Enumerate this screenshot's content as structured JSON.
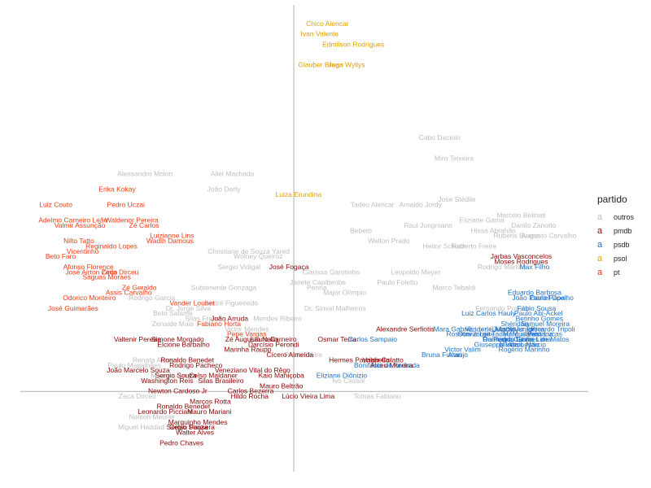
{
  "chart_data": {
    "type": "scatter",
    "title": "",
    "xlabel": "",
    "ylabel": "",
    "grid": false,
    "legend_title": "partido",
    "legend_placement": "right",
    "legend": [
      {
        "key": "outros",
        "label": "outros",
        "color": "#bdbdbd"
      },
      {
        "key": "pmdb",
        "label": "pmdb",
        "color": "#8b0000"
      },
      {
        "key": "psdb",
        "label": "psdb",
        "color": "#1f6fc5"
      },
      {
        "key": "psol",
        "label": "psol",
        "color": "#e0a000"
      },
      {
        "key": "pt",
        "label": "pt",
        "color": "#ee3a12"
      }
    ],
    "points": [
      {
        "label": "Chico Alencar",
        "party": "psol",
        "x": 0.35,
        "y": 0.71
      },
      {
        "label": "Ivan Valente",
        "party": "psol",
        "x": 0.27,
        "y": 0.69
      },
      {
        "label": "Edmilson Rodrigues",
        "party": "psol",
        "x": 0.62,
        "y": 0.67
      },
      {
        "label": "Glauber Braga",
        "party": "psol",
        "x": 0.28,
        "y": 0.63
      },
      {
        "label": "Jean Wyllys",
        "party": "psol",
        "x": 0.55,
        "y": 0.63
      },
      {
        "label": "Luiza Erundina",
        "party": "psol",
        "x": 0.05,
        "y": 0.38
      },
      {
        "label": "Cabo Daciolo",
        "party": "outros",
        "x": 1.52,
        "y": 0.49
      },
      {
        "label": "Miro Teixeira",
        "party": "outros",
        "x": 1.67,
        "y": 0.45
      },
      {
        "label": "Aliel Machado",
        "party": "outros",
        "x": -0.64,
        "y": 0.42
      },
      {
        "label": "João Derly",
        "party": "outros",
        "x": -0.73,
        "y": 0.39
      },
      {
        "label": "Alessandro Molon",
        "party": "outros",
        "x": -1.55,
        "y": 0.42
      },
      {
        "label": "Tadeu Alencar",
        "party": "outros",
        "x": 0.82,
        "y": 0.36
      },
      {
        "label": "Arnaldo Jordy",
        "party": "outros",
        "x": 1.32,
        "y": 0.36
      },
      {
        "label": "Jose Stédile",
        "party": "outros",
        "x": 1.7,
        "y": 0.37
      },
      {
        "label": "Raul Jungmann",
        "party": "outros",
        "x": 1.4,
        "y": 0.32
      },
      {
        "label": "Eliziane Gama",
        "party": "outros",
        "x": 1.96,
        "y": 0.33
      },
      {
        "label": "Hissa Abrahão",
        "party": "outros",
        "x": 2.08,
        "y": 0.31
      },
      {
        "label": "Marcelo Belinati",
        "party": "outros",
        "x": 2.37,
        "y": 0.34
      },
      {
        "label": "Danilo Zanotto",
        "party": "outros",
        "x": 2.5,
        "y": 0.32
      },
      {
        "label": "Rubens Bueno",
        "party": "outros",
        "x": 2.32,
        "y": 0.3
      },
      {
        "label": "Augusto Carvalho",
        "party": "outros",
        "x": 2.66,
        "y": 0.3
      },
      {
        "label": "Bebeto",
        "party": "outros",
        "x": 0.7,
        "y": 0.31
      },
      {
        "label": "Welton Prado",
        "party": "outros",
        "x": 0.99,
        "y": 0.29
      },
      {
        "label": "Heitor Schuch",
        "party": "outros",
        "x": 1.57,
        "y": 0.28
      },
      {
        "label": "Roberto Freire",
        "party": "outros",
        "x": 1.88,
        "y": 0.28
      },
      {
        "label": "Christiane de Souza Yared",
        "party": "outros",
        "x": -0.47,
        "y": 0.27
      },
      {
        "label": "Wolney Queiroz",
        "party": "outros",
        "x": -0.37,
        "y": 0.26
      },
      {
        "label": "Sergio Vidigal",
        "party": "outros",
        "x": -0.57,
        "y": 0.24
      },
      {
        "label": "Clarissa Garotinho",
        "party": "outros",
        "x": 0.39,
        "y": 0.23
      },
      {
        "label": "Janete Capiberibe",
        "party": "outros",
        "x": 0.25,
        "y": 0.21
      },
      {
        "label": "Paulo Foletto",
        "party": "outros",
        "x": 1.08,
        "y": 0.21
      },
      {
        "label": "Leopoldo Meyer",
        "party": "outros",
        "x": 1.27,
        "y": 0.23
      },
      {
        "label": "Rodrigo Martins",
        "party": "outros",
        "x": 2.17,
        "y": 0.24
      },
      {
        "label": "Subtenente Gonzaga",
        "party": "outros",
        "x": -0.73,
        "y": 0.2
      },
      {
        "label": "Penna",
        "party": "outros",
        "x": 0.24,
        "y": 0.2
      },
      {
        "label": "Major Olímpio",
        "party": "outros",
        "x": 0.53,
        "y": 0.19
      },
      {
        "label": "Marco Tebaldi",
        "party": "outros",
        "x": 1.67,
        "y": 0.2
      },
      {
        "label": "Rodrigo Garcia",
        "party": "outros",
        "x": -1.48,
        "y": 0.18
      },
      {
        "label": "André Figueiredo",
        "party": "outros",
        "x": -0.65,
        "y": 0.17
      },
      {
        "label": "Dr. Jorge Silva",
        "party": "outros",
        "x": -1.1,
        "y": 0.16
      },
      {
        "label": "Dr. Sinval Malheiros",
        "party": "outros",
        "x": 0.43,
        "y": 0.16
      },
      {
        "label": "Fernando Ponson",
        "party": "outros",
        "x": 2.18,
        "y": 0.16
      },
      {
        "label": "Beto Salame",
        "party": "outros",
        "x": -1.26,
        "y": 0.15
      },
      {
        "label": "Silas Freire",
        "party": "outros",
        "x": -0.95,
        "y": 0.14
      },
      {
        "label": "Mendes Ribeiro",
        "party": "outros",
        "x": -0.17,
        "y": 0.14
      },
      {
        "label": "Zenaide Maia",
        "party": "outros",
        "x": -1.26,
        "y": 0.13
      },
      {
        "label": "Luiz Cauduro",
        "party": "outros",
        "x": 2.1,
        "y": 0.12
      },
      {
        "label": "Victor Mendes",
        "party": "outros",
        "x": -0.49,
        "y": 0.12
      },
      {
        "label": "Paulo Freire",
        "party": "outros",
        "x": 0.1,
        "y": 0.07
      },
      {
        "label": "Renata Abreu",
        "party": "outros",
        "x": -1.46,
        "y": 0.06
      },
      {
        "label": "Paulo Magalhães",
        "party": "outros",
        "x": -1.66,
        "y": 0.05
      },
      {
        "label": "Mauro Lopes",
        "party": "outros",
        "x": -1.28,
        "y": 0.03
      },
      {
        "label": "Nelson Meurer",
        "party": "outros",
        "x": -1.48,
        "y": -0.05
      },
      {
        "label": "Miguel Haddad",
        "party": "outros",
        "x": -1.59,
        "y": -0.07
      },
      {
        "label": "Zeca Dirceu",
        "party": "outros",
        "x": -1.63,
        "y": -0.01
      },
      {
        "label": "Tomas Fabiano",
        "party": "outros",
        "x": 0.87,
        "y": -0.01
      },
      {
        "label": "Ivo Cassol",
        "party": "outros",
        "x": 0.57,
        "y": 0.02
      },
      {
        "label": "Erika Kokay",
        "party": "pt",
        "x": -1.84,
        "y": 0.39
      },
      {
        "label": "Pedro Uczai",
        "party": "pt",
        "x": -1.75,
        "y": 0.36
      },
      {
        "label": "Luiz Couto",
        "party": "pt",
        "x": -2.48,
        "y": 0.36
      },
      {
        "label": "Waldenor Pereira",
        "party": "pt",
        "x": -1.69,
        "y": 0.33
      },
      {
        "label": "Zé Carlos",
        "party": "pt",
        "x": -1.56,
        "y": 0.32
      },
      {
        "label": "Adelmo Carneiro Leão",
        "party": "pt",
        "x": -2.3,
        "y": 0.33
      },
      {
        "label": "Valmir Assunção",
        "party": "pt",
        "x": -2.23,
        "y": 0.32
      },
      {
        "label": "Nilto Tatto",
        "party": "pt",
        "x": -2.24,
        "y": 0.29
      },
      {
        "label": "Luizianne Lins",
        "party": "pt",
        "x": -1.27,
        "y": 0.3
      },
      {
        "label": "Wadih Damous",
        "party": "pt",
        "x": -1.29,
        "y": 0.29
      },
      {
        "label": "Vicentinho",
        "party": "pt",
        "x": -2.2,
        "y": 0.27
      },
      {
        "label": "Beto Faro",
        "party": "pt",
        "x": -2.43,
        "y": 0.26
      },
      {
        "label": "Afonso Florence",
        "party": "pt",
        "x": -2.14,
        "y": 0.24
      },
      {
        "label": "José Airton Cirilo",
        "party": "pt",
        "x": -2.11,
        "y": 0.23
      },
      {
        "label": "Zeca Dirceu",
        "party": "pt",
        "x": -1.81,
        "y": 0.23
      },
      {
        "label": "Ságuas Moraes",
        "party": "pt",
        "x": -1.95,
        "y": 0.22
      },
      {
        "label": "Zé Geraldo",
        "party": "pt",
        "x": -1.61,
        "y": 0.2
      },
      {
        "label": "Assis Carvalho",
        "party": "pt",
        "x": -1.72,
        "y": 0.19
      },
      {
        "label": "Odorico Monteiro",
        "party": "pt",
        "x": -2.13,
        "y": 0.18
      },
      {
        "label": "José Guimarães",
        "party": "pt",
        "x": -2.3,
        "y": 0.16
      },
      {
        "label": "Reginaldo Lopes",
        "party": "pt",
        "x": -1.9,
        "y": 0.28
      },
      {
        "label": "Fabiano Horta",
        "party": "pt",
        "x": -0.78,
        "y": 0.13
      },
      {
        "label": "Vander Loubet",
        "party": "pt",
        "x": -1.06,
        "y": 0.17
      },
      {
        "label": "José Fogaça",
        "party": "pmdb",
        "x": -0.05,
        "y": 0.24
      },
      {
        "label": "João Arruda",
        "party": "pmdb",
        "x": -0.67,
        "y": 0.14
      },
      {
        "label": "Pepe Vargas",
        "party": "pt",
        "x": -0.49,
        "y": 0.11
      },
      {
        "label": "Jarbas Vasconcelos",
        "party": "pmdb",
        "x": 2.37,
        "y": 0.26
      },
      {
        "label": "Moses Rodrigues",
        "party": "pmdb",
        "x": 2.37,
        "y": 0.25
      },
      {
        "label": "Alexandre Serfiotis",
        "party": "pmdb",
        "x": 1.16,
        "y": 0.12
      },
      {
        "label": "Osmar Terra",
        "party": "pmdb",
        "x": 0.45,
        "y": 0.1
      },
      {
        "label": "Valtenir Pereira",
        "party": "pmdb",
        "x": -1.63,
        "y": 0.1
      },
      {
        "label": "Simone Morgado",
        "party": "pmdb",
        "x": -1.21,
        "y": 0.1
      },
      {
        "label": "Elcione Barbalho",
        "party": "pmdb",
        "x": -1.15,
        "y": 0.09
      },
      {
        "label": "Zé Augusto Nalin",
        "party": "pmdb",
        "x": -0.44,
        "y": 0.1
      },
      {
        "label": "Lauro Carneiro",
        "party": "pmdb",
        "x": -0.21,
        "y": 0.1
      },
      {
        "label": "Darcísio Perondi",
        "party": "pmdb",
        "x": -0.21,
        "y": 0.09
      },
      {
        "label": "Marinha Raupp",
        "party": "pmdb",
        "x": -0.48,
        "y": 0.08
      },
      {
        "label": "Cícero Almeida",
        "party": "pmdb",
        "x": -0.04,
        "y": 0.07
      },
      {
        "label": "Hermes Parcianello",
        "party": "pmdb",
        "x": 0.68,
        "y": 0.06
      },
      {
        "label": "Valdir Colatto",
        "party": "pmdb",
        "x": 0.93,
        "y": 0.06
      },
      {
        "label": "Alceu Moreira",
        "party": "pmdb",
        "x": 1.02,
        "y": 0.05
      },
      {
        "label": "Veneziano Vital do Rêgo",
        "party": "pmdb",
        "x": -0.43,
        "y": 0.04
      },
      {
        "label": "Kaio Maniçoba",
        "party": "pmdb",
        "x": -0.13,
        "y": 0.03
      },
      {
        "label": "Mauro Beltrão",
        "party": "pmdb",
        "x": -0.13,
        "y": 0.01
      },
      {
        "label": "Carlos Bezerra",
        "party": "pmdb",
        "x": -0.45,
        "y": 0.0
      },
      {
        "label": "Ronaldo Benedet",
        "party": "pmdb",
        "x": -1.11,
        "y": 0.06
      },
      {
        "label": "Rodrigo Pacheco",
        "party": "pmdb",
        "x": -1.02,
        "y": 0.05
      },
      {
        "label": "Celso Maldaner",
        "party": "pmdb",
        "x": -0.84,
        "y": 0.03
      },
      {
        "label": "João Marcelo Souza",
        "party": "pmdb",
        "x": -1.62,
        "y": 0.04
      },
      {
        "label": "Sergio Souza",
        "party": "pmdb",
        "x": -1.23,
        "y": 0.03
      },
      {
        "label": "Washington Reis",
        "party": "pmdb",
        "x": -1.32,
        "y": 0.02
      },
      {
        "label": "Newton Cardoso Jr",
        "party": "pmdb",
        "x": -1.21,
        "y": 0.0
      },
      {
        "label": "Silas Brasileiro",
        "party": "pmdb",
        "x": -0.76,
        "y": 0.02
      },
      {
        "label": "Hildo Rocha",
        "party": "pmdb",
        "x": -0.46,
        "y": -0.01
      },
      {
        "label": "Marcos Rotta",
        "party": "pmdb",
        "x": -0.87,
        "y": -0.02
      },
      {
        "label": "Leonardo Picciani",
        "party": "pmdb",
        "x": -1.34,
        "y": -0.04
      },
      {
        "label": "Ronaldo Benedet",
        "party": "pmdb",
        "x": -1.15,
        "y": -0.03
      },
      {
        "label": "Mauro Mariani",
        "party": "pmdb",
        "x": -0.88,
        "y": -0.04
      },
      {
        "label": "Marquinho Mendes",
        "party": "pmdb",
        "x": -1.0,
        "y": -0.06
      },
      {
        "label": "Celso Pansera",
        "party": "pmdb",
        "x": -1.06,
        "y": -0.07
      },
      {
        "label": "Sergio Souza",
        "party": "pmdb",
        "x": -1.11,
        "y": -0.07
      },
      {
        "label": "Walter Alves",
        "party": "pmdb",
        "x": -1.03,
        "y": -0.08
      },
      {
        "label": "Pedro Chaves",
        "party": "pmdb",
        "x": -1.17,
        "y": -0.1
      },
      {
        "label": "Lúcio Vieira Lima",
        "party": "pmdb",
        "x": 0.15,
        "y": -0.01
      },
      {
        "label": "Max Filho",
        "party": "psdb",
        "x": 2.51,
        "y": 0.24
      },
      {
        "label": "Eduardo Barbosa",
        "party": "psdb",
        "x": 2.51,
        "y": 0.19
      },
      {
        "label": "João Paulo Papa",
        "party": "psdb",
        "x": 2.55,
        "y": 0.18
      },
      {
        "label": "Daniel Coelho",
        "party": "psdb",
        "x": 2.69,
        "y": 0.18
      },
      {
        "label": "Bruna Furlan",
        "party": "psdb",
        "x": 1.54,
        "y": 0.07
      },
      {
        "label": "Carlos Sampaio",
        "party": "psdb",
        "x": 0.82,
        "y": 0.1
      },
      {
        "label": "Bonifácio de Andrada",
        "party": "psdb",
        "x": 0.97,
        "y": 0.05
      },
      {
        "label": "Eliziane Diônizio",
        "party": "psdb",
        "x": 0.5,
        "y": 0.03
      },
      {
        "label": "Mara Gabrilli",
        "party": "psdb",
        "x": 1.66,
        "y": 0.12
      },
      {
        "label": "Vanderlei Macris",
        "party": "psdb",
        "x": 2.05,
        "y": 0.12
      },
      {
        "label": "Luiz Carlos Hauly",
        "party": "psdb",
        "x": 2.03,
        "y": 0.15
      },
      {
        "label": "Otavio Leite",
        "party": "psdb",
        "x": 1.9,
        "y": 0.11
      },
      {
        "label": "Rogério Marinho",
        "party": "psdb",
        "x": 2.4,
        "y": 0.08
      },
      {
        "label": "Nilson Leitão",
        "party": "psdb",
        "x": 2.35,
        "y": 0.09
      },
      {
        "label": "Samuel Moreira",
        "party": "psdb",
        "x": 2.62,
        "y": 0.13
      },
      {
        "label": "Marcus Pestana",
        "party": "psdb",
        "x": 2.44,
        "y": 0.11
      },
      {
        "label": "Fábio Sousa",
        "party": "psdb",
        "x": 2.53,
        "y": 0.16
      },
      {
        "label": "Paulo Abi-Ackel",
        "party": "psdb",
        "x": 2.55,
        "y": 0.15
      },
      {
        "label": "Jutahy Junior",
        "party": "psdb",
        "x": 2.29,
        "y": 0.12
      },
      {
        "label": "Pedro Cunha Lima",
        "party": "psdb",
        "x": 2.38,
        "y": 0.1
      },
      {
        "label": "Domingos Sávio",
        "party": "psdb",
        "x": 2.23,
        "y": 0.1
      },
      {
        "label": "Raimundo Gomes de Matos",
        "party": "psdb",
        "x": 2.42,
        "y": 0.1
      },
      {
        "label": "Caio Narcio",
        "party": "psdb",
        "x": 2.44,
        "y": 0.09
      },
      {
        "label": "Betinho Gomes",
        "party": "psdb",
        "x": 2.56,
        "y": 0.14
      },
      {
        "label": "Ricardo Tripoli",
        "party": "psdb",
        "x": 2.7,
        "y": 0.12
      },
      {
        "label": "Izalci Lucas",
        "party": "psdb",
        "x": 2.61,
        "y": 0.11
      },
      {
        "label": "Giuseppe Vecci",
        "party": "psdb",
        "x": 2.13,
        "y": 0.09
      },
      {
        "label": "Victor Valim",
        "party": "psdb",
        "x": 1.76,
        "y": 0.08
      },
      {
        "label": "Araújo",
        "party": "psdb",
        "x": 1.71,
        "y": 0.07
      },
      {
        "label": "Rossoni",
        "party": "psdb",
        "x": 1.72,
        "y": 0.11
      },
      {
        "label": "Shéridan",
        "party": "psdb",
        "x": 2.3,
        "y": 0.13
      },
      {
        "label": "Jorge Tadeu Mudalen",
        "party": "psdb",
        "x": 2.21,
        "y": 0.11
      },
      {
        "label": "Silvio Torres",
        "party": "psdb",
        "x": 2.42,
        "y": 0.12
      }
    ],
    "xlim": [
      -2.85,
      3.07
    ],
    "ylim": [
      -0.155,
      0.747
    ],
    "zero_lines": true
  }
}
